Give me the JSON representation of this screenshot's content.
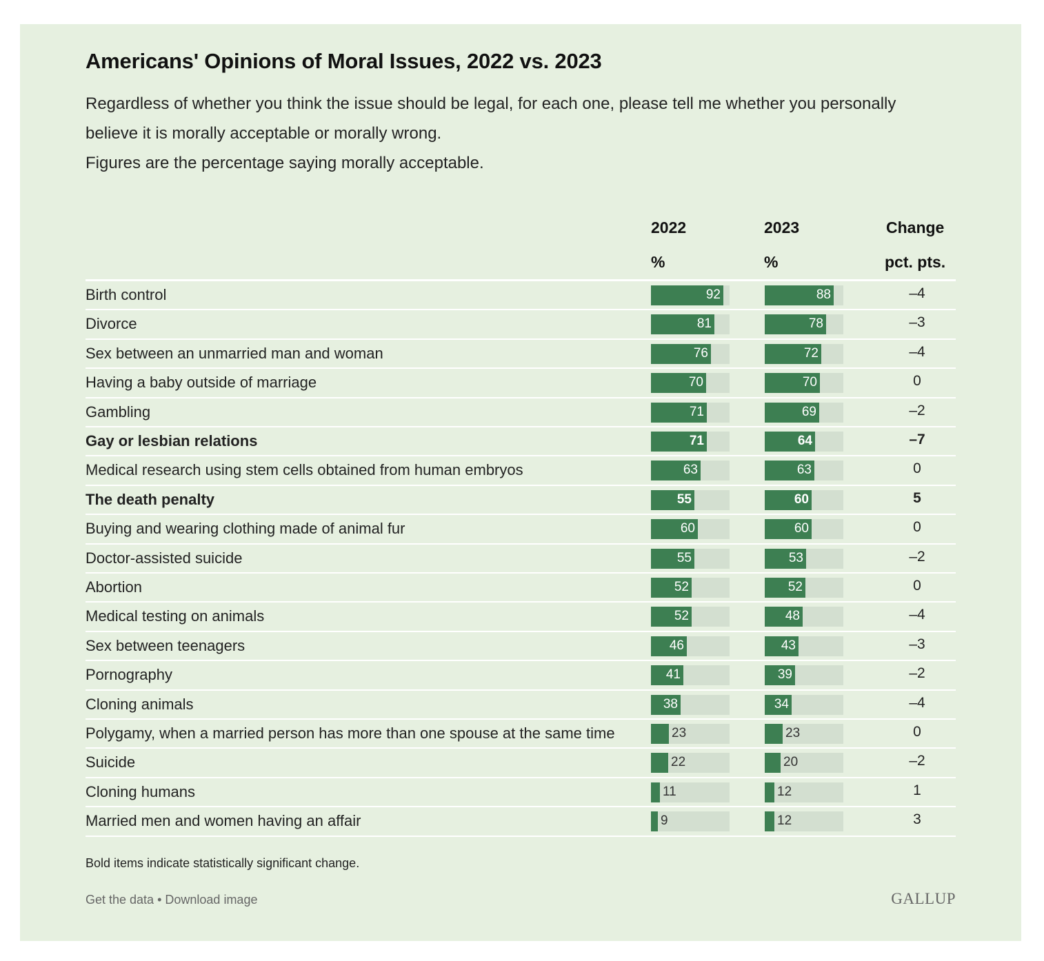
{
  "chart_data": {
    "type": "table",
    "title": "Americans' Opinions of Moral Issues, 2022 vs. 2023",
    "subtitle_lines": [
      "Regardless of whether you think the issue should be legal, for each one, please tell me whether you personally",
      "believe it is morally acceptable or morally wrong.",
      "Figures are the percentage saying morally acceptable."
    ],
    "columns": {
      "y2022": {
        "line1": "2022",
        "line2": "%"
      },
      "y2023": {
        "line1": "2023",
        "line2": "%"
      },
      "change": {
        "line1": "Change",
        "line2": "pct. pts."
      }
    },
    "xlim": [
      0,
      100
    ],
    "rows": [
      {
        "label": "Birth control",
        "v2022": 92,
        "v2023": 88,
        "change": "–4",
        "bold": false
      },
      {
        "label": "Divorce",
        "v2022": 81,
        "v2023": 78,
        "change": "–3",
        "bold": false
      },
      {
        "label": "Sex between an unmarried man and woman",
        "v2022": 76,
        "v2023": 72,
        "change": "–4",
        "bold": false
      },
      {
        "label": "Having a baby outside of marriage",
        "v2022": 70,
        "v2023": 70,
        "change": "0",
        "bold": false
      },
      {
        "label": "Gambling",
        "v2022": 71,
        "v2023": 69,
        "change": "–2",
        "bold": false
      },
      {
        "label": "Gay or lesbian relations",
        "v2022": 71,
        "v2023": 64,
        "change": "–7",
        "bold": true
      },
      {
        "label": "Medical research using stem cells obtained from human embryos",
        "v2022": 63,
        "v2023": 63,
        "change": "0",
        "bold": false
      },
      {
        "label": "The death penalty",
        "v2022": 55,
        "v2023": 60,
        "change": "5",
        "bold": true
      },
      {
        "label": "Buying and wearing clothing made of animal fur",
        "v2022": 60,
        "v2023": 60,
        "change": "0",
        "bold": false
      },
      {
        "label": "Doctor-assisted suicide",
        "v2022": 55,
        "v2023": 53,
        "change": "–2",
        "bold": false
      },
      {
        "label": "Abortion",
        "v2022": 52,
        "v2023": 52,
        "change": "0",
        "bold": false
      },
      {
        "label": "Medical testing on animals",
        "v2022": 52,
        "v2023": 48,
        "change": "–4",
        "bold": false
      },
      {
        "label": "Sex between teenagers",
        "v2022": 46,
        "v2023": 43,
        "change": "–3",
        "bold": false
      },
      {
        "label": "Pornography",
        "v2022": 41,
        "v2023": 39,
        "change": "–2",
        "bold": false
      },
      {
        "label": "Cloning animals",
        "v2022": 38,
        "v2023": 34,
        "change": "–4",
        "bold": false
      },
      {
        "label": "Polygamy, when a married person has more than one spouse at the same time",
        "v2022": 23,
        "v2023": 23,
        "change": "0",
        "bold": false
      },
      {
        "label": "Suicide",
        "v2022": 22,
        "v2023": 20,
        "change": "–2",
        "bold": false
      },
      {
        "label": "Cloning humans",
        "v2022": 11,
        "v2023": 12,
        "change": "1",
        "bold": false
      },
      {
        "label": "Married men and women having an affair",
        "v2022": 9,
        "v2023": 12,
        "change": "3",
        "bold": false
      }
    ],
    "bar_color": "#3d7f52",
    "track_color": "#d3dfd0",
    "background_color": "#e6f0e0"
  },
  "footnote": "Bold items indicate statistically significant change.",
  "links": {
    "get_data": "Get the data",
    "separator": " • ",
    "download": "Download image"
  },
  "logo": "GALLUP"
}
